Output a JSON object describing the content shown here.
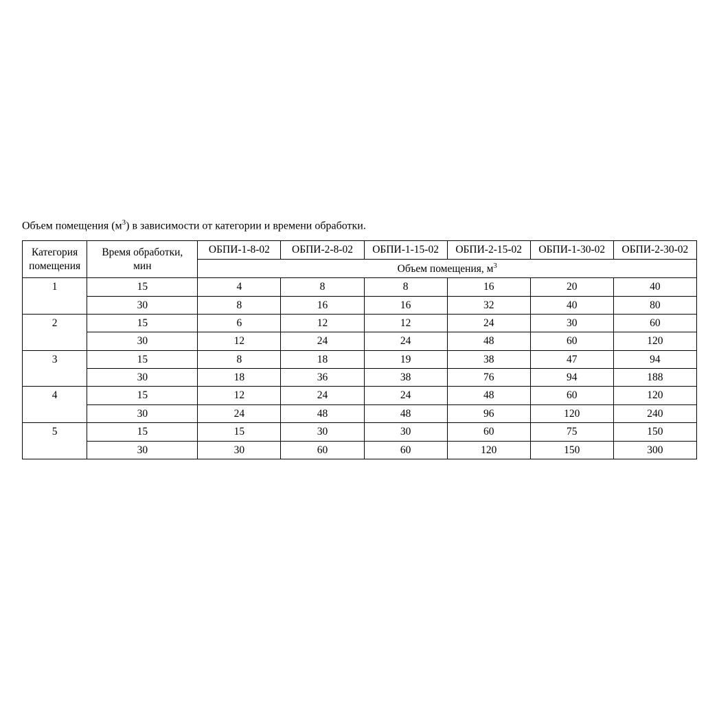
{
  "page": {
    "background_color": "#ffffff",
    "text_color": "#000000",
    "font_family": "Times New Roman",
    "font_size_pt": 12,
    "caption_prefix": "Объем помещения (м",
    "caption_sup": "3",
    "caption_suffix": ") в зависимости от категории и времени обработки."
  },
  "table": {
    "border_color": "#000000",
    "header": {
      "category_label": "Категория помещения",
      "time_label": "Время обработки, мин",
      "device_columns": [
        "ОБПИ-1-8-02",
        "ОБПИ-2-8-02",
        "ОБПИ-1-15-02",
        "ОБПИ-2-15-02",
        "ОБПИ-1-30-02",
        "ОБПИ-2-30-02"
      ],
      "span_prefix": "Объем помещения, м",
      "span_sup": "3"
    },
    "column_widths_pct": {
      "category": 9.6,
      "time": 16.4,
      "device": 12.33
    },
    "groups": [
      {
        "category": "1",
        "rows": [
          {
            "time": "15",
            "values": [
              "4",
              "8",
              "8",
              "16",
              "20",
              "40"
            ]
          },
          {
            "time": "30",
            "values": [
              "8",
              "16",
              "16",
              "32",
              "40",
              "80"
            ]
          }
        ]
      },
      {
        "category": "2",
        "rows": [
          {
            "time": "15",
            "values": [
              "6",
              "12",
              "12",
              "24",
              "30",
              "60"
            ]
          },
          {
            "time": "30",
            "values": [
              "12",
              "24",
              "24",
              "48",
              "60",
              "120"
            ]
          }
        ]
      },
      {
        "category": "3",
        "rows": [
          {
            "time": "15",
            "values": [
              "8",
              "18",
              "19",
              "38",
              "47",
              "94"
            ]
          },
          {
            "time": "30",
            "values": [
              "18",
              "36",
              "38",
              "76",
              "94",
              "188"
            ]
          }
        ]
      },
      {
        "category": "4",
        "rows": [
          {
            "time": "15",
            "values": [
              "12",
              "24",
              "24",
              "48",
              "60",
              "120"
            ]
          },
          {
            "time": "30",
            "values": [
              "24",
              "48",
              "48",
              "96",
              "120",
              "240"
            ]
          }
        ]
      },
      {
        "category": "5",
        "rows": [
          {
            "time": "15",
            "values": [
              "15",
              "30",
              "30",
              "60",
              "75",
              "150"
            ]
          },
          {
            "time": "30",
            "values": [
              "30",
              "60",
              "60",
              "120",
              "150",
              "300"
            ]
          }
        ]
      }
    ]
  }
}
